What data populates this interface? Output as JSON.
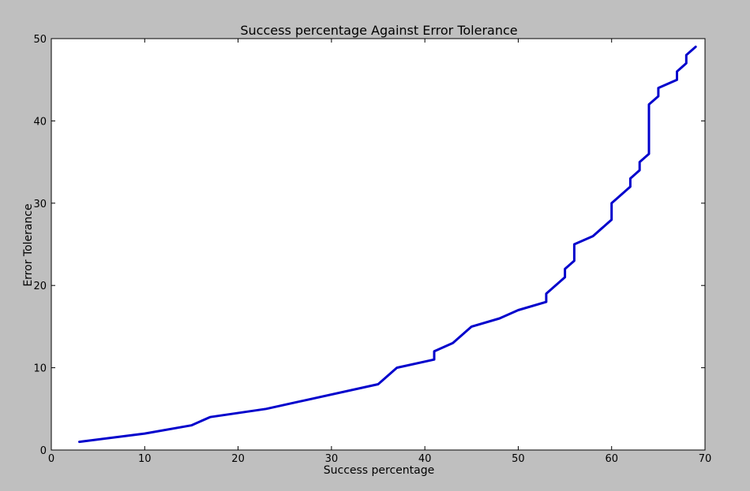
{
  "chart_data": {
    "type": "line",
    "title": "Success percentage Against Error Tolerance",
    "xlabel": "Success percentage",
    "ylabel": "Error Tolerance",
    "xlim": [
      0,
      70
    ],
    "ylim": [
      0,
      50
    ],
    "xticks": [
      0,
      10,
      20,
      30,
      40,
      50,
      60,
      70
    ],
    "yticks": [
      0,
      10,
      20,
      30,
      40,
      50
    ],
    "xtick_labels": [
      "0",
      "10",
      "20",
      "30",
      "40",
      "50",
      "60",
      "70"
    ],
    "ytick_labels": [
      "0",
      "10",
      "20",
      "30",
      "40",
      "50"
    ],
    "grid": false,
    "colors": {
      "background": "#bfbfbf",
      "plot_area": "#ffffff",
      "line": "#0000cc"
    },
    "series": [
      {
        "x": [
          3,
          10,
          15,
          17,
          23,
          35,
          37,
          41,
          41,
          43,
          45,
          48,
          50,
          53,
          53,
          55,
          55,
          56,
          56,
          58,
          60,
          60,
          62,
          62,
          63,
          63,
          64,
          64,
          65,
          65,
          67,
          67,
          68,
          68,
          69
        ],
        "y": [
          1,
          2,
          3,
          4,
          5,
          8,
          10,
          11,
          12,
          13,
          15,
          16,
          17,
          18,
          19,
          21,
          22,
          23,
          25,
          26,
          28,
          30,
          32,
          33,
          34,
          35,
          36,
          42,
          43,
          44,
          45,
          46,
          47,
          48,
          49
        ]
      }
    ]
  }
}
